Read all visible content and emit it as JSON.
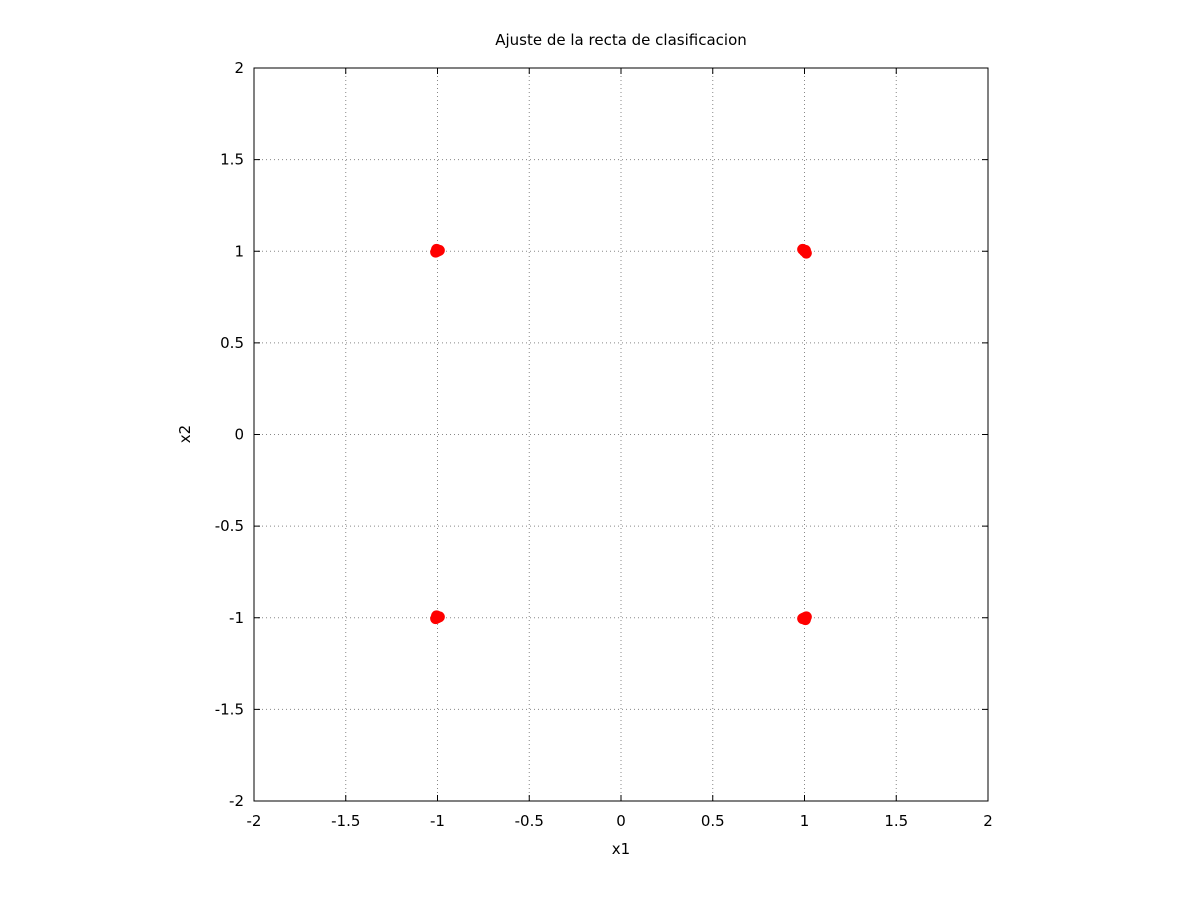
{
  "chart_data": {
    "type": "scatter",
    "title": "Ajuste de la recta de clasificacion",
    "xlabel": "x1",
    "ylabel": "x2",
    "xlim": [
      -2,
      2
    ],
    "ylim": [
      -2,
      2
    ],
    "xticks": [
      "-2",
      "-1.5",
      "-1",
      "-0.5",
      "0",
      "0.5",
      "1",
      "1.5",
      "2"
    ],
    "yticks": [
      "-2",
      "-1.5",
      "-1",
      "-0.5",
      "0",
      "0.5",
      "1",
      "1.5",
      "2"
    ],
    "grid": true,
    "series": [
      {
        "color": "#ff0000",
        "marker": "circle",
        "points": [
          {
            "x": -1,
            "y": 1
          },
          {
            "x": -0.99,
            "y": 1.005
          },
          {
            "x": -1.01,
            "y": 0.995
          },
          {
            "x": -1.005,
            "y": 1.01
          },
          {
            "x": 1,
            "y": 1
          },
          {
            "x": 0.99,
            "y": 1.01
          },
          {
            "x": 1.01,
            "y": 0.99
          },
          {
            "x": 1.005,
            "y": 1.005
          },
          {
            "x": -1,
            "y": -1
          },
          {
            "x": -0.99,
            "y": -0.995
          },
          {
            "x": -1.01,
            "y": -1.005
          },
          {
            "x": -1.005,
            "y": -0.99
          },
          {
            "x": 1,
            "y": -1
          },
          {
            "x": 0.99,
            "y": -1.005
          },
          {
            "x": 1.01,
            "y": -0.995
          },
          {
            "x": 1.005,
            "y": -1.01
          }
        ]
      }
    ]
  }
}
